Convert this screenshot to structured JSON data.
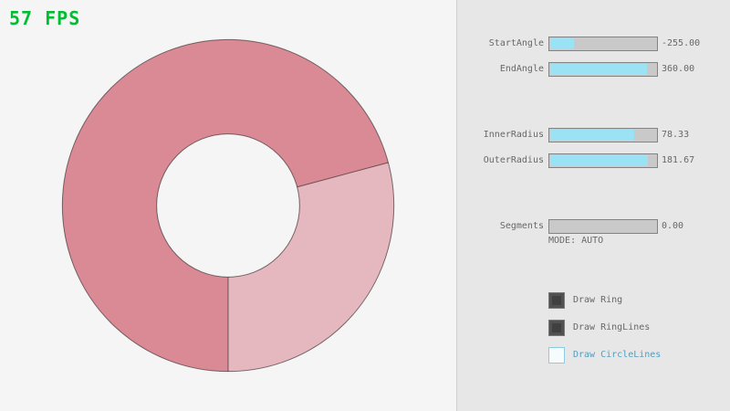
{
  "fps": {
    "label": "57 FPS"
  },
  "colors": {
    "bg": "#f5f5f5",
    "panel_bg": "#e7e7e7",
    "panel_divider": "#cfcfcf",
    "fps_green": "#00bd32",
    "text_gray": "#686868",
    "slider_track": "#c9c9c9",
    "slider_border": "#838383",
    "slider_accent": "#9be2f5",
    "check_dark": "#515151",
    "check_border": "#787878",
    "blue_text": "#4f9fc1",
    "blue_border": "#8ecae0"
  },
  "ring": {
    "single_color": "#e5b7be",
    "double_color": "#d98a95",
    "line_color": "rgba(0,0,0,0.5)",
    "inner_radius": 78.33,
    "outer_radius": 181.67,
    "start_angle": -255.0,
    "end_angle": 360.0,
    "segments": 0
  },
  "panel": {
    "sliders": [
      {
        "label": "StartAngle",
        "value": "-255.00",
        "fill_pct": 21.7
      },
      {
        "label": "EndAngle",
        "value": "360.00",
        "fill_pct": 90.0
      },
      {
        "label": "InnerRadius",
        "value": "78.33",
        "fill_pct": 78.3
      },
      {
        "label": "OuterRadius",
        "value": "181.67",
        "fill_pct": 90.8
      },
      {
        "label": "Segments",
        "value": "0.00",
        "fill_pct": 0
      }
    ],
    "mode_text": "MODE: AUTO",
    "checkboxes": [
      {
        "label": "Draw Ring",
        "checked": true
      },
      {
        "label": "Draw RingLines",
        "checked": true
      },
      {
        "label": "Draw CircleLines",
        "checked": false
      }
    ]
  }
}
